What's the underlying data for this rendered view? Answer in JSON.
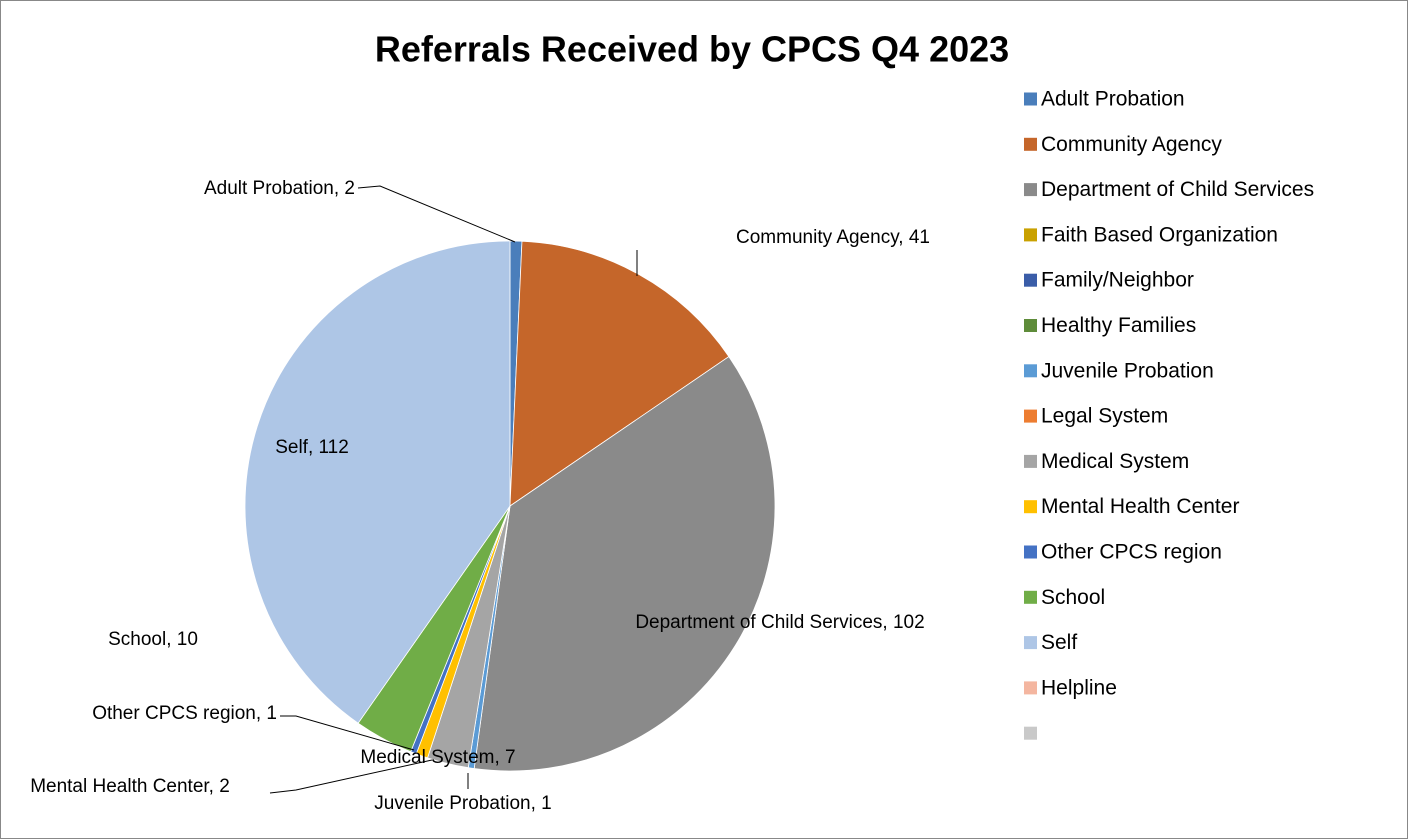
{
  "chart_data": {
    "type": "pie",
    "title": "Referrals Received by CPCS Q4 2023",
    "categories": [
      "Adult Probation",
      "Community Agency",
      "Department of Child Services",
      "Faith Based Organization",
      "Family/Neighbor",
      "Healthy Families",
      "Juvenile Probation",
      "Legal System",
      "Medical System",
      "Mental Health Center",
      "Other CPCS region",
      "School",
      "Self",
      "Helpline",
      null
    ],
    "values": [
      2,
      41,
      102,
      0,
      0,
      0,
      1,
      0,
      7,
      2,
      1,
      10,
      112,
      0,
      0
    ],
    "value_labels": [
      "Adult Probation, 2",
      "Community Agency, 41",
      "Department of Child Services, 102",
      null,
      null,
      null,
      "Juvenile Probation, 1",
      null,
      "Medical System, 7",
      "Mental Health Center, 2",
      "Other CPCS region, 1",
      "School, 10",
      "Self, 112",
      null,
      null
    ],
    "colors": [
      "#4A7EBB",
      "#C5662A",
      "#8A8A8A",
      "#C9A100",
      "#3A5DA8",
      "#5E8C3A",
      "#5B9BD5",
      "#ED7D31",
      "#A5A5A5",
      "#FFC000",
      "#4472C4",
      "#70AD47",
      "#AEC6E6",
      "#F4B6A0",
      "#C9C9C9"
    ],
    "legend": "right"
  }
}
